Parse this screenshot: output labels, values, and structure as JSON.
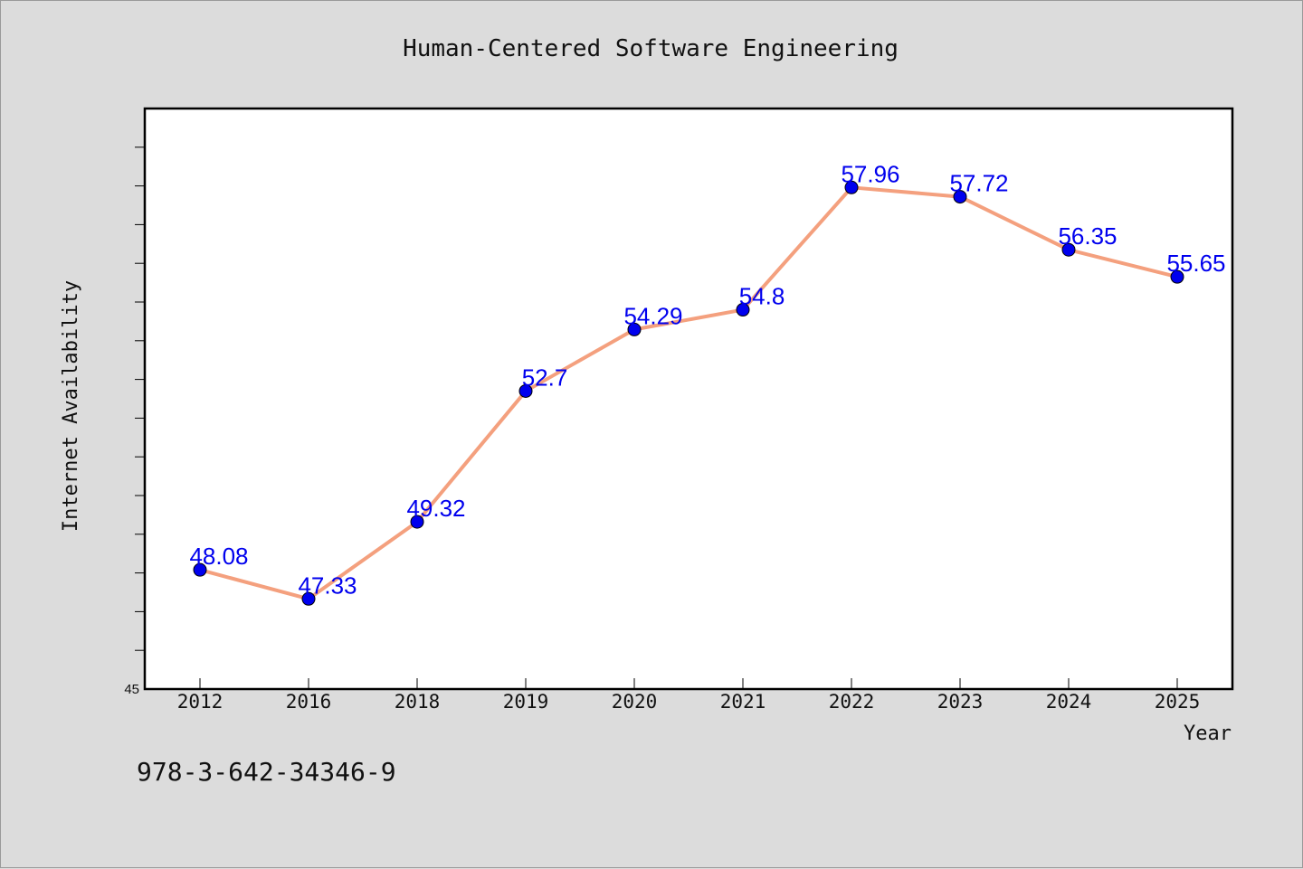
{
  "chart_data": {
    "type": "line",
    "title": "Human-Centered Software Engineering",
    "xlabel": "Year",
    "ylabel": "Internet Availability",
    "categories": [
      "2012",
      "2016",
      "2018",
      "2019",
      "2020",
      "2021",
      "2022",
      "2023",
      "2024",
      "2025"
    ],
    "series": [
      {
        "values": [
          48.08,
          47.33,
          49.32,
          52.7,
          54.29,
          54.8,
          57.96,
          57.72,
          56.35,
          55.65
        ]
      }
    ],
    "data_labels": [
      "48.08",
      "47.33",
      "49.32",
      "52.7",
      "54.29",
      "54.8",
      "57.96",
      "57.72",
      "56.35",
      "55.65"
    ],
    "ylim": [
      45,
      60
    ],
    "y_tick_labels": [
      "45"
    ],
    "grid": false,
    "line_color": "#f4a07e",
    "marker_color": "#0000ee"
  },
  "footer": {
    "isbn": "978-3-642-34346-9"
  }
}
